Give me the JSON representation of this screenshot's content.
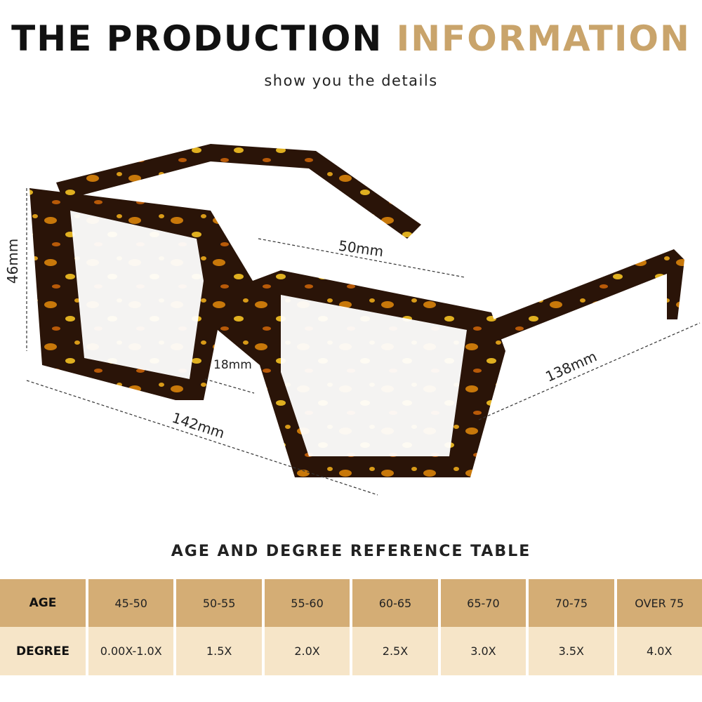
{
  "header": {
    "title_dark": "THE PRODUCTION",
    "title_accent": "INFORMATION",
    "subtitle": "show you the details"
  },
  "dimensions": {
    "lens_width": "50mm",
    "lens_height": "46mm",
    "bridge": "18mm",
    "frame_width": "142mm",
    "temple_length": "138mm"
  },
  "table": {
    "title": "AGE AND DEGREE REFERENCE TABLE",
    "rows": [
      {
        "label": "AGE",
        "values": [
          "45-50",
          "50-55",
          "55-60",
          "60-65",
          "65-70",
          "70-75",
          "OVER 75"
        ]
      },
      {
        "label": "DEGREE",
        "values": [
          "0.00X-1.0X",
          "1.5X",
          "2.0X",
          "2.5X",
          "3.0X",
          "3.5X",
          "4.0X"
        ]
      }
    ]
  },
  "colors": {
    "accent": "#c9a46b",
    "table_header": "#d4ad75",
    "table_row": "#f6e5c8",
    "frame": "#2a1408"
  }
}
